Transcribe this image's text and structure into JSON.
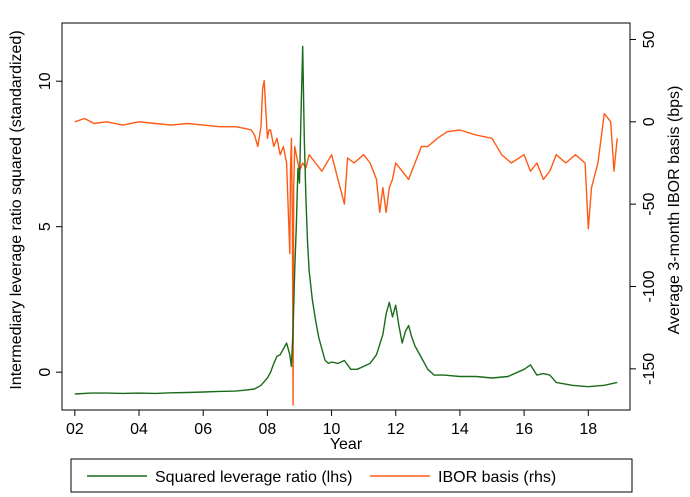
{
  "chart_data": {
    "type": "line",
    "xlabel": "Year",
    "ylabel_left": "Intermediary leverage ratio squared (standardized)",
    "ylabel_right": "Average 3-month IBOR basis (bps)",
    "xlim": [
      2001.6,
      2019.3
    ],
    "ylim_left": [
      -1.3,
      12.0
    ],
    "ylim_right": [
      -175,
      60
    ],
    "x_ticks": [
      2002,
      2004,
      2006,
      2008,
      2010,
      2012,
      2014,
      2016,
      2018
    ],
    "x_tick_labels": [
      "02",
      "04",
      "06",
      "08",
      "10",
      "12",
      "14",
      "16",
      "18"
    ],
    "y_left_ticks": [
      0,
      5,
      10
    ],
    "y_left_tick_labels": [
      "0",
      "5",
      "10"
    ],
    "y_right_ticks": [
      50,
      0,
      -50,
      -100,
      -150
    ],
    "y_right_tick_labels": [
      "50",
      "0",
      "-50",
      "-100",
      "-150"
    ],
    "grid": false,
    "legend_position": "bottom",
    "series": [
      {
        "name": "Squared leverage ratio (lhs)",
        "axis": "left",
        "color": "#1a6b1a",
        "x": [
          2002.0,
          2002.5,
          2003.0,
          2003.5,
          2004.0,
          2004.5,
          2005.0,
          2005.5,
          2006.0,
          2006.5,
          2007.0,
          2007.3,
          2007.6,
          2007.8,
          2008.0,
          2008.1,
          2008.2,
          2008.3,
          2008.4,
          2008.5,
          2008.6,
          2008.7,
          2008.75,
          2008.8,
          2008.85,
          2008.9,
          2008.95,
          2009.0,
          2009.05,
          2009.1,
          2009.15,
          2009.2,
          2009.25,
          2009.3,
          2009.4,
          2009.5,
          2009.6,
          2009.7,
          2009.8,
          2009.9,
          2010.0,
          2010.2,
          2010.4,
          2010.6,
          2010.8,
          2011.0,
          2011.2,
          2011.4,
          2011.6,
          2011.7,
          2011.8,
          2011.9,
          2012.0,
          2012.1,
          2012.2,
          2012.3,
          2012.4,
          2012.5,
          2012.6,
          2012.8,
          2013.0,
          2013.2,
          2013.5,
          2014.0,
          2014.5,
          2015.0,
          2015.5,
          2016.0,
          2016.2,
          2016.4,
          2016.6,
          2016.8,
          2017.0,
          2017.5,
          2018.0,
          2018.5,
          2018.9
        ],
        "y": [
          -0.75,
          -0.72,
          -0.72,
          -0.73,
          -0.72,
          -0.73,
          -0.71,
          -0.7,
          -0.68,
          -0.66,
          -0.65,
          -0.62,
          -0.58,
          -0.45,
          -0.2,
          0.0,
          0.3,
          0.55,
          0.6,
          0.8,
          1.0,
          0.6,
          0.2,
          1.5,
          3.5,
          5.0,
          7.0,
          6.5,
          9.0,
          11.2,
          8.0,
          6.0,
          4.5,
          3.5,
          2.5,
          1.8,
          1.2,
          0.8,
          0.4,
          0.3,
          0.35,
          0.3,
          0.4,
          0.1,
          0.1,
          0.2,
          0.3,
          0.6,
          1.3,
          2.0,
          2.4,
          1.9,
          2.3,
          1.6,
          1.0,
          1.4,
          1.6,
          1.2,
          0.9,
          0.5,
          0.1,
          -0.1,
          -0.1,
          -0.15,
          -0.15,
          -0.2,
          -0.15,
          0.1,
          0.25,
          -0.1,
          -0.05,
          -0.1,
          -0.35,
          -0.45,
          -0.5,
          -0.45,
          -0.35
        ]
      },
      {
        "name": "IBOR basis (rhs)",
        "axis": "right",
        "color": "#ff5a14",
        "x": [
          2002.0,
          2002.3,
          2002.6,
          2003.0,
          2003.5,
          2004.0,
          2004.5,
          2005.0,
          2005.5,
          2006.0,
          2006.5,
          2007.0,
          2007.3,
          2007.5,
          2007.6,
          2007.7,
          2007.8,
          2007.85,
          2007.9,
          2008.0,
          2008.05,
          2008.1,
          2008.2,
          2008.3,
          2008.4,
          2008.5,
          2008.6,
          2008.7,
          2008.72,
          2008.75,
          2008.78,
          2008.8,
          2008.82,
          2008.85,
          2008.9,
          2009.0,
          2009.1,
          2009.2,
          2009.3,
          2009.5,
          2009.7,
          2010.0,
          2010.2,
          2010.4,
          2010.5,
          2010.7,
          2011.0,
          2011.2,
          2011.4,
          2011.5,
          2011.6,
          2011.7,
          2011.8,
          2011.9,
          2012.0,
          2012.2,
          2012.4,
          2012.6,
          2012.8,
          2013.0,
          2013.3,
          2013.6,
          2014.0,
          2014.5,
          2015.0,
          2015.3,
          2015.6,
          2016.0,
          2016.2,
          2016.4,
          2016.6,
          2016.8,
          2017.0,
          2017.3,
          2017.6,
          2017.9,
          2018.0,
          2018.1,
          2018.3,
          2018.5,
          2018.7,
          2018.8,
          2018.9
        ],
        "y": [
          0,
          2,
          -1,
          0,
          -2,
          0,
          -1,
          -2,
          -1,
          -2,
          -3,
          -3,
          -4,
          -5,
          -8,
          -15,
          -3,
          20,
          25,
          -10,
          -5,
          -5,
          -15,
          -10,
          -20,
          -15,
          -25,
          -80,
          -30,
          -10,
          -60,
          -172,
          -40,
          -15,
          -20,
          -30,
          -25,
          -28,
          -20,
          -25,
          -30,
          -20,
          -35,
          -50,
          -22,
          -25,
          -20,
          -25,
          -35,
          -55,
          -40,
          -55,
          -40,
          -35,
          -25,
          -30,
          -35,
          -25,
          -15,
          -15,
          -10,
          -6,
          -5,
          -8,
          -10,
          -20,
          -25,
          -20,
          -30,
          -25,
          -35,
          -30,
          -20,
          -25,
          -20,
          -25,
          -65,
          -40,
          -25,
          5,
          0,
          -30,
          -10
        ]
      }
    ]
  }
}
